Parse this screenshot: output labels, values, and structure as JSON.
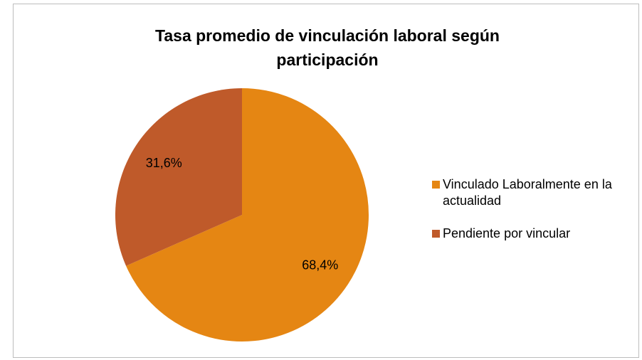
{
  "chart_data": {
    "type": "pie",
    "title": "Tasa promedio de vinculación laboral según participación",
    "categories": [
      "Vinculado Laboralmente en la actualidad",
      "Pendiente por vincular"
    ],
    "values": [
      68.4,
      31.6
    ],
    "value_labels": [
      "68,4%",
      "31,6%"
    ],
    "colors": [
      "#e58613",
      "#bf5a2a"
    ],
    "legend": "right"
  }
}
